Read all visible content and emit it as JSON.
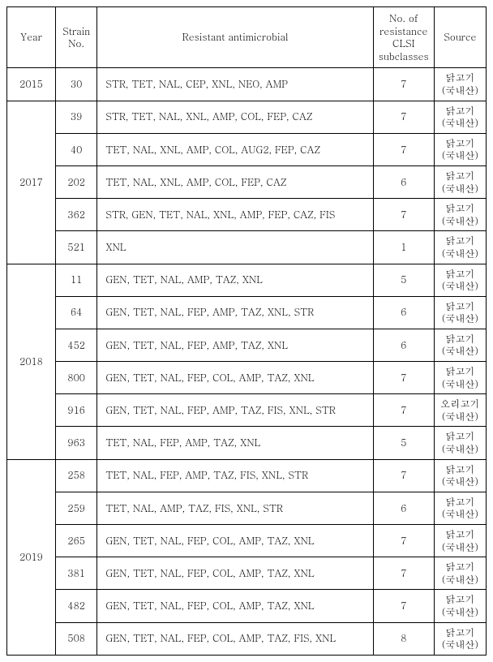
{
  "headers": {
    "year": "Year",
    "strain": "Strain\nNo.",
    "resistant": "Resistant antimicrobial",
    "num": "No. of\nresistance\nCLSI\nsubclasses",
    "source": "Source"
  },
  "rows": [
    {
      "year": "2015",
      "strain": "30",
      "resist": "STR, TET, NAL, CEP, XNL, NEO, AMP",
      "num": "7",
      "src_main": "닭고기",
      "src_sub": "(국내산)"
    },
    {
      "year": "2017",
      "strain": "39",
      "resist": "STR, TET, NAL, XNL, AMP, COL, FEP, CAZ",
      "num": "7",
      "src_main": "닭고기",
      "src_sub": "(국내산)"
    },
    {
      "year": "2017",
      "strain": "40",
      "resist": "TET, NAL, XNL, AMP, COL, AUG2, FEP, CAZ",
      "num": "7",
      "src_main": "닭고기",
      "src_sub": "(국내산)"
    },
    {
      "year": "2017",
      "strain": "202",
      "resist": "TET, NAL, XNL, AMP, COL, FEP, CAZ",
      "num": "6",
      "src_main": "닭고기",
      "src_sub": "(국내산)"
    },
    {
      "year": "2017",
      "strain": "362",
      "resist": "STR, GEN, TET, NAL, XNL, AMP, FEP, CAZ, FIS",
      "num": "7",
      "src_main": "닭고기",
      "src_sub": "(국내산)"
    },
    {
      "year": "2017",
      "strain": "521",
      "resist": "XNL",
      "num": "1",
      "src_main": "닭고기",
      "src_sub": "(국내산)"
    },
    {
      "year": "2018",
      "strain": "11",
      "resist": "GEN, TET, NAL, AMP, TAZ, XNL",
      "num": "5",
      "src_main": "닭고기",
      "src_sub": "(국내산)"
    },
    {
      "year": "2018",
      "strain": "64",
      "resist": "GEN, TET, NAL, FEP, AMP, TAZ, XNL, STR",
      "num": "6",
      "src_main": "닭고기",
      "src_sub": "(국내산)"
    },
    {
      "year": "2018",
      "strain": "452",
      "resist": "GEN, TET, NAL, FEP, AMP, TAZ, XNL",
      "num": "6",
      "src_main": "닭고기",
      "src_sub": "(국내산)"
    },
    {
      "year": "2018",
      "strain": "800",
      "resist": "GEN, TET, NAL, FEP, COL, AMP, TAZ, XNL",
      "num": "7",
      "src_main": "닭고기",
      "src_sub": "(국내산)"
    },
    {
      "year": "2018",
      "strain": "916",
      "resist": "GEN, TET, NAL, FEP, AMP, TAZ, FIS, XNL, STR",
      "num": "7",
      "src_main": "오리고기",
      "src_sub": "(국내산)"
    },
    {
      "year": "2018",
      "strain": "963",
      "resist": "TET, NAL, FEP, AMP, TAZ, XNL",
      "num": "5",
      "src_main": "닭고기",
      "src_sub": "(국내산)"
    },
    {
      "year": "2019",
      "strain": "258",
      "resist": "TET, NAL, FEP, AMP, TAZ, FIS, XNL, STR",
      "num": "7",
      "src_main": "닭고기",
      "src_sub": "(국내산)"
    },
    {
      "year": "2019",
      "strain": "259",
      "resist": "TET, NAL, AMP, TAZ, FIS, XNL, STR",
      "num": "6",
      "src_main": "닭고기",
      "src_sub": "(국내산)"
    },
    {
      "year": "2019",
      "strain": "265",
      "resist": "GEN, TET, NAL, FEP, COL, AMP, TAZ, XNL",
      "num": "7",
      "src_main": "닭고기",
      "src_sub": "(국내산)"
    },
    {
      "year": "2019",
      "strain": "381",
      "resist": "GEN, TET, NAL, FEP, COL, AMP, TAZ, XNL",
      "num": "7",
      "src_main": "닭고기",
      "src_sub": "(국내산)"
    },
    {
      "year": "2019",
      "strain": "482",
      "resist": "GEN, TET, NAL, FEP, COL, AMP, TAZ, XNL",
      "num": "7",
      "src_main": "닭고기",
      "src_sub": "(국내산)"
    },
    {
      "year": "2019",
      "strain": "508",
      "resist": "GEN, TET, NAL, FEP, COL, AMP, TAZ, FIS, XNL",
      "num": "8",
      "src_main": "닭고기",
      "src_sub": "(국내산)"
    }
  ],
  "year_groups": [
    {
      "year": "2015",
      "span": 1
    },
    {
      "year": "2017",
      "span": 5
    },
    {
      "year": "2018",
      "span": 6
    },
    {
      "year": "2019",
      "span": 6
    }
  ]
}
